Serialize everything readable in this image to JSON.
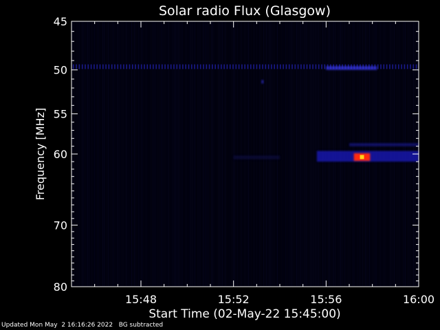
{
  "chart_data": {
    "type": "heatmap",
    "title": "Solar radio Flux (Glasgow)",
    "xlabel": "Start Time (02-May-22 15:45:00)",
    "ylabel": "Frequency [MHz]",
    "xlim": [
      "15:45",
      "16:00"
    ],
    "ylim": [
      45,
      80
    ],
    "y_scale": "log",
    "y_inverted": true,
    "x_ticks": [
      "15:48",
      "15:52",
      "15:56",
      "16:00"
    ],
    "y_ticks": [
      45,
      50,
      55,
      60,
      70,
      80
    ],
    "background_color": "#01010c",
    "features": [
      {
        "start": "15:45",
        "end": "16:00",
        "freq_low": 49.4,
        "freq_high": 49.9,
        "color": "#2a2ad8",
        "intensity": 0.6,
        "pattern": "dotted"
      },
      {
        "start": "15:56",
        "end": "15:58.2",
        "freq_low": 49.6,
        "freq_high": 50.0,
        "color": "#3838e8",
        "intensity": 0.7
      },
      {
        "start": "15:52",
        "end": "15:54",
        "freq_low": 60.2,
        "freq_high": 60.7,
        "color": "#14146a",
        "intensity": 0.35
      },
      {
        "start": "15:55.6",
        "end": "16:00",
        "freq_low": 59.6,
        "freq_high": 61.0,
        "color": "#1e1ecc",
        "intensity": 0.7
      },
      {
        "start": "15:57",
        "end": "16:00",
        "freq_low": 58.6,
        "freq_high": 59.0,
        "color": "#1a1aa8",
        "intensity": 0.55
      },
      {
        "start": "15:57.2",
        "end": "15:57.9",
        "freq_low": 59.9,
        "freq_high": 60.9,
        "color": "#ff2a10",
        "intensity": 1.0
      },
      {
        "start": "15:53.2",
        "end": "15:53.3",
        "freq_low": 51.1,
        "freq_high": 51.5,
        "color": "#3030e0",
        "intensity": 0.6
      }
    ]
  },
  "footer": {
    "updated": "Updated Mon May  2 16:16:26 2022",
    "note": "BG subtracted"
  }
}
